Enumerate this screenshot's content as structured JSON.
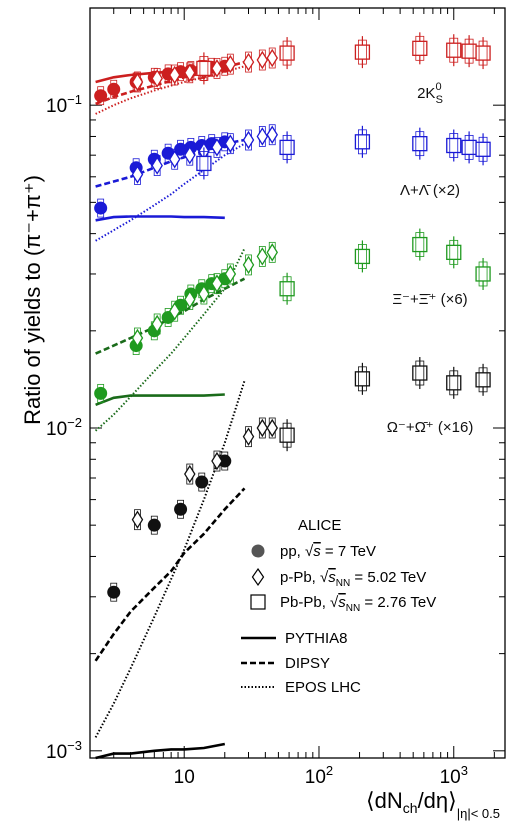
{
  "chart_data": {
    "type": "scatter",
    "xscale": "log",
    "yscale": "log",
    "xlim": [
      2.0,
      2400
    ],
    "ylim": [
      0.00095,
      0.2
    ],
    "ylabel": "Ratio of yields to (π⁻+π⁺)",
    "xlabel_main": "⟨dN",
    "xlabel_sub": "ch",
    "xlabel_rest": "/dη⟩",
    "xlabel_subscript": "|η|< 0.5",
    "x_ticks": [
      {
        "value": 10,
        "label": "10"
      },
      {
        "value": 100,
        "label": "10",
        "sup": "2"
      },
      {
        "value": 1000,
        "label": "10",
        "sup": "3"
      }
    ],
    "y_ticks": [
      {
        "value": 0.001,
        "label": "10",
        "sup": "−3"
      },
      {
        "value": 0.01,
        "label": "10",
        "sup": "−2"
      },
      {
        "value": 0.1,
        "label": "10",
        "sup": "−1"
      }
    ],
    "colors": {
      "kaon": "#cc1f1f",
      "lambda": "#1a1ad6",
      "xi": "#1f9a1f",
      "omega": "#111111",
      "xi_model": "#1a6b1a"
    },
    "species_labels": [
      {
        "id": "kaon",
        "text": "2K",
        "sup": "0",
        "sub": "S",
        "color": "#cc1f1f"
      },
      {
        "id": "lambda",
        "text": "Λ+Λ̄ (×2)",
        "color": "#1a1ad6"
      },
      {
        "id": "xi",
        "text": "Ξ⁻+Ξ̄⁺ (×6)",
        "color": "#1f9a1f"
      },
      {
        "id": "omega",
        "text": "Ω⁻+Ω̄⁺ (×16)",
        "color": "#111111"
      }
    ],
    "series": [
      {
        "system": "pp",
        "species": "kaon",
        "marker": "circle",
        "color": "#cc1f1f",
        "x": [
          2.4,
          3.0,
          4.4,
          6.0,
          7.6,
          9.4,
          11.2,
          13.5,
          16.0,
          20.0
        ],
        "y": [
          0.107,
          0.112,
          0.118,
          0.122,
          0.125,
          0.127,
          0.128,
          0.129,
          0.131,
          0.132
        ]
      },
      {
        "system": "p-Pb",
        "species": "kaon",
        "marker": "diamond",
        "color": "#cc1f1f",
        "x": [
          4.5,
          6.3,
          8.5,
          11.0,
          14.0,
          17.5,
          22,
          30,
          38,
          45
        ],
        "y": [
          0.118,
          0.121,
          0.124,
          0.126,
          0.128,
          0.13,
          0.134,
          0.136,
          0.138,
          0.14
        ]
      },
      {
        "system": "Pb-Pb",
        "species": "kaon",
        "marker": "square",
        "color": "#cc1f1f",
        "x": [
          14,
          58,
          210,
          560,
          1000,
          1300,
          1650
        ],
        "y": [
          0.13,
          0.145,
          0.146,
          0.15,
          0.148,
          0.147,
          0.145
        ]
      },
      {
        "system": "pp",
        "species": "lambda",
        "marker": "circle",
        "color": "#1a1ad6",
        "x": [
          2.4,
          4.4,
          6.0,
          7.6,
          9.4,
          11.2,
          13.5,
          16.0,
          20.0
        ],
        "y": [
          0.048,
          0.064,
          0.068,
          0.071,
          0.073,
          0.074,
          0.075,
          0.076,
          0.077
        ]
      },
      {
        "system": "p-Pb",
        "species": "lambda",
        "marker": "diamond",
        "color": "#1a1ad6",
        "x": [
          4.5,
          6.3,
          8.5,
          11.0,
          14.0,
          17.5,
          22,
          30,
          38,
          45
        ],
        "y": [
          0.061,
          0.065,
          0.068,
          0.07,
          0.072,
          0.074,
          0.076,
          0.078,
          0.08,
          0.081
        ]
      },
      {
        "system": "Pb-Pb",
        "species": "lambda",
        "marker": "square",
        "color": "#1a1ad6",
        "x": [
          14,
          58,
          210,
          560,
          1000,
          1300,
          1650
        ],
        "y": [
          0.066,
          0.074,
          0.077,
          0.076,
          0.075,
          0.074,
          0.073
        ]
      },
      {
        "system": "pp",
        "species": "xi",
        "marker": "circle",
        "color": "#1f9a1f",
        "x": [
          2.4,
          4.4,
          6.0,
          7.6,
          9.4,
          11.2,
          13.5,
          16.0,
          20.0
        ],
        "y": [
          0.0128,
          0.018,
          0.02,
          0.022,
          0.024,
          0.026,
          0.027,
          0.028,
          0.029
        ]
      },
      {
        "system": "p-Pb",
        "species": "xi",
        "marker": "diamond",
        "color": "#1f9a1f",
        "x": [
          4.5,
          6.3,
          8.5,
          11.0,
          14.0,
          17.5,
          22,
          30,
          38,
          45
        ],
        "y": [
          0.019,
          0.021,
          0.023,
          0.025,
          0.026,
          0.028,
          0.03,
          0.032,
          0.034,
          0.035
        ]
      },
      {
        "system": "Pb-Pb",
        "species": "xi",
        "marker": "square",
        "color": "#1f9a1f",
        "x": [
          58,
          210,
          560,
          1000,
          1650
        ],
        "y": [
          0.027,
          0.034,
          0.037,
          0.035,
          0.03
        ]
      },
      {
        "system": "pp",
        "species": "omega",
        "marker": "circle",
        "color": "#111111",
        "x": [
          3.0,
          6.0,
          9.4,
          13.5,
          20.0
        ],
        "y": [
          0.0031,
          0.005,
          0.0056,
          0.0068,
          0.0079
        ]
      },
      {
        "system": "p-Pb",
        "species": "omega",
        "marker": "diamond",
        "color": "#111111",
        "x": [
          4.5,
          11.0,
          17.5,
          30,
          38,
          45
        ],
        "y": [
          0.0052,
          0.0072,
          0.0079,
          0.0094,
          0.01,
          0.01
        ]
      },
      {
        "system": "Pb-Pb",
        "species": "omega",
        "marker": "square",
        "color": "#111111",
        "x": [
          58,
          210,
          560,
          1000,
          1650
        ],
        "y": [
          0.0095,
          0.0142,
          0.0148,
          0.0138,
          0.0141
        ]
      }
    ],
    "models": [
      {
        "name": "PYTHIA8",
        "species": "kaon",
        "style": "solid",
        "color": "#cc1f1f",
        "x": [
          2.2,
          3,
          4,
          6,
          8,
          10,
          14,
          20
        ],
        "y": [
          0.118,
          0.122,
          0.124,
          0.126,
          0.127,
          0.127,
          0.128,
          0.129
        ]
      },
      {
        "name": "DIPSY",
        "species": "kaon",
        "style": "dashed",
        "color": "#cc1f1f",
        "x": [
          2.2,
          3,
          4,
          6,
          8,
          10,
          14,
          20,
          28
        ],
        "y": [
          0.101,
          0.106,
          0.11,
          0.115,
          0.119,
          0.122,
          0.126,
          0.131,
          0.136
        ]
      },
      {
        "name": "EPOS LHC",
        "species": "kaon",
        "style": "dotted",
        "color": "#cc1f1f",
        "x": [
          2.2,
          3,
          4,
          6,
          8,
          10,
          14,
          20,
          28
        ],
        "y": [
          0.094,
          0.1,
          0.105,
          0.111,
          0.115,
          0.118,
          0.122,
          0.127,
          0.132
        ]
      },
      {
        "name": "PYTHIA8",
        "species": "lambda",
        "style": "solid",
        "color": "#1a1ad6",
        "x": [
          2.2,
          3,
          4,
          6,
          8,
          10,
          14,
          20
        ],
        "y": [
          0.044,
          0.045,
          0.0452,
          0.0452,
          0.0452,
          0.045,
          0.045,
          0.0448
        ]
      },
      {
        "name": "DIPSY",
        "species": "lambda",
        "style": "dashed",
        "color": "#1a1ad6",
        "x": [
          2.2,
          3,
          4,
          6,
          8,
          10,
          14,
          20,
          28
        ],
        "y": [
          0.056,
          0.058,
          0.06,
          0.064,
          0.067,
          0.069,
          0.072,
          0.076,
          0.078
        ]
      },
      {
        "name": "EPOS LHC",
        "species": "lambda",
        "style": "dotted",
        "color": "#1a1ad6",
        "x": [
          2.2,
          3,
          4,
          6,
          8,
          10,
          14,
          20,
          28
        ],
        "y": [
          0.038,
          0.041,
          0.044,
          0.049,
          0.053,
          0.057,
          0.063,
          0.07,
          0.076
        ]
      },
      {
        "name": "PYTHIA8",
        "species": "xi",
        "style": "solid",
        "color": "#1a6b1a",
        "x": [
          2.2,
          3,
          4,
          6,
          8,
          10,
          14,
          20
        ],
        "y": [
          0.0118,
          0.0124,
          0.0126,
          0.0126,
          0.0126,
          0.0126,
          0.0126,
          0.0127
        ]
      },
      {
        "name": "DIPSY",
        "species": "xi",
        "style": "dashed",
        "color": "#1a6b1a",
        "x": [
          2.2,
          3,
          4,
          6,
          8,
          10,
          14,
          20,
          28
        ],
        "y": [
          0.017,
          0.018,
          0.019,
          0.0205,
          0.022,
          0.023,
          0.025,
          0.027,
          0.029
        ]
      },
      {
        "name": "EPOS LHC",
        "species": "xi",
        "style": "dotted",
        "color": "#1a6b1a",
        "x": [
          2.2,
          3,
          4,
          6,
          8,
          10,
          14,
          20,
          28
        ],
        "y": [
          0.0098,
          0.011,
          0.0125,
          0.015,
          0.017,
          0.019,
          0.0225,
          0.027,
          0.036
        ]
      },
      {
        "name": "PYTHIA8",
        "species": "omega",
        "style": "solid",
        "color": "#000000",
        "x": [
          2.2,
          3,
          4,
          6,
          8,
          10,
          14,
          20
        ],
        "y": [
          0.00095,
          0.00098,
          0.00098,
          0.001,
          0.00101,
          0.00101,
          0.00102,
          0.00105
        ]
      },
      {
        "name": "DIPSY",
        "species": "omega",
        "style": "dashed",
        "color": "#000000",
        "x": [
          2.2,
          3,
          4,
          6,
          8,
          10,
          14,
          20,
          28
        ],
        "y": [
          0.0019,
          0.0023,
          0.0027,
          0.0032,
          0.0036,
          0.0041,
          0.0047,
          0.0056,
          0.0065
        ]
      },
      {
        "name": "EPOS LHC",
        "species": "omega",
        "style": "dotted",
        "color": "#000000",
        "x": [
          2.2,
          3,
          4,
          6,
          8,
          10,
          14,
          20,
          28
        ],
        "y": [
          0.0011,
          0.0014,
          0.0018,
          0.0026,
          0.0034,
          0.0042,
          0.006,
          0.009,
          0.014
        ]
      }
    ],
    "legend": {
      "placement": "bottom-right",
      "experiment": "ALICE",
      "systems": [
        {
          "marker": "circle",
          "label": "pp,",
          "energy": "= 7 TeV",
          "sqrt": "s",
          "sqrt_sub": ""
        },
        {
          "marker": "diamond",
          "label": "p-Pb,",
          "energy": "= 5.02 TeV",
          "sqrt": "s",
          "sqrt_sub": "NN"
        },
        {
          "marker": "square",
          "label": "Pb-Pb,",
          "energy": "= 2.76 TeV",
          "sqrt": "s",
          "sqrt_sub": "NN"
        }
      ],
      "models": [
        {
          "style": "solid",
          "label": "PYTHIA8"
        },
        {
          "style": "dashed",
          "label": "DIPSY"
        },
        {
          "style": "dotted",
          "label": "EPOS LHC"
        }
      ]
    }
  }
}
